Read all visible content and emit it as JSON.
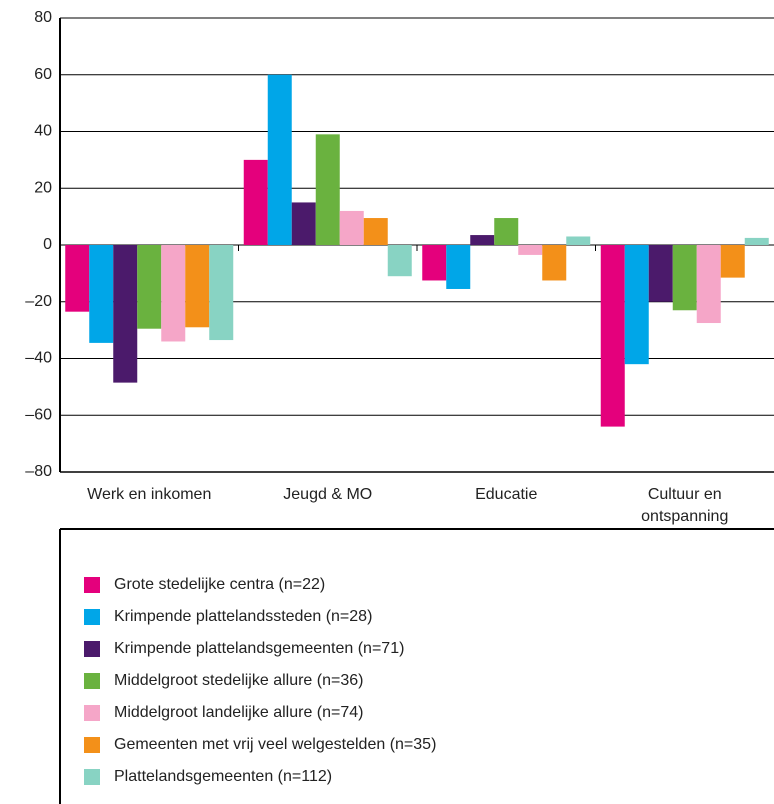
{
  "chart_data": {
    "type": "bar",
    "categories": [
      "Werk en inkomen",
      "Jeugd & MO",
      "Educatie",
      "Cultuur en ontspanning"
    ],
    "series": [
      {
        "name": "Grote stedelijke centra (n=22)",
        "color": "#e4007c",
        "values": [
          -23.5,
          30,
          -12.5,
          -64
        ]
      },
      {
        "name": "Krimpende plattelandssteden (n=28)",
        "color": "#00a6e8",
        "values": [
          -34.5,
          60,
          -15.5,
          -42
        ]
      },
      {
        "name": "Krimpende plattelandsgemeenten (n=71)",
        "color": "#4b1a6b",
        "values": [
          -48.5,
          15,
          3.5,
          -20
        ]
      },
      {
        "name": "Middelgroot stedelijke allure (n=36)",
        "color": "#6ab23f",
        "values": [
          -29.5,
          39,
          9.5,
          -23
        ]
      },
      {
        "name": "Middelgroot landelijke allure (n=74)",
        "color": "#f5a6c8",
        "values": [
          -34,
          12,
          -3.5,
          -27.5
        ]
      },
      {
        "name": "Gemeenten met vrij veel welgestelden (n=35)",
        "color": "#f39019",
        "values": [
          -29,
          9.5,
          -12.5,
          -11.5
        ]
      },
      {
        "name": "Plattelandsgemeenten (n=112)",
        "color": "#88d3c3",
        "values": [
          -33.5,
          -11,
          3,
          2.5
        ]
      }
    ],
    "ylim": [
      -80,
      80
    ],
    "yticks": [
      {
        "value": -80,
        "label": "–80"
      },
      {
        "value": -60,
        "label": "–60"
      },
      {
        "value": -40,
        "label": "–40"
      },
      {
        "value": -20,
        "label": "–20"
      },
      0,
      20,
      40,
      60,
      80
    ],
    "grid": true
  }
}
